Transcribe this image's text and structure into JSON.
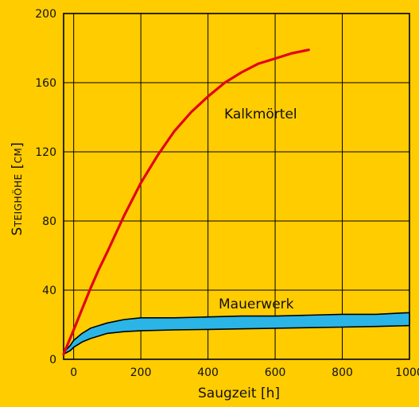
{
  "colors": {
    "background": "#FFCC00",
    "grid": "#000000",
    "kalk_line": "#E3001B",
    "band_fill": "#2BB5E6",
    "band_edge": "#000000"
  },
  "chart_data": {
    "type": "line",
    "xlabel": "Saugzeit [h]",
    "ylabel": "Steighöhe [cm]",
    "xlim": [
      -30,
      1000
    ],
    "ylim": [
      0,
      200
    ],
    "x_ticks": [
      0,
      200,
      400,
      600,
      800,
      1000
    ],
    "y_ticks": [
      0,
      40,
      80,
      120,
      160,
      200
    ],
    "grid": true,
    "series": [
      {
        "name": "Kalkmörtel",
        "kind": "line",
        "x": [
          -30,
          0,
          25,
          50,
          75,
          100,
          150,
          200,
          250,
          300,
          350,
          400,
          450,
          500,
          550,
          600,
          650,
          700
        ],
        "y": [
          3,
          17,
          29,
          41,
          52,
          62,
          83,
          102,
          118,
          132,
          143,
          152,
          160,
          166,
          171,
          174,
          177,
          179
        ]
      },
      {
        "name": "Mauerwerk",
        "kind": "band",
        "x": [
          -30,
          -10,
          0,
          25,
          50,
          100,
          150,
          200,
          300,
          400,
          500,
          600,
          700,
          800,
          900,
          1000
        ],
        "upper": [
          4,
          8,
          11,
          15,
          18,
          21,
          23,
          24,
          24,
          24.5,
          25,
          25,
          25.5,
          26,
          26,
          27
        ],
        "lower": [
          3,
          5,
          7,
          10,
          12,
          15,
          16,
          16.5,
          17,
          17.3,
          17.6,
          18,
          18.3,
          18.6,
          19,
          19.5
        ]
      }
    ]
  }
}
